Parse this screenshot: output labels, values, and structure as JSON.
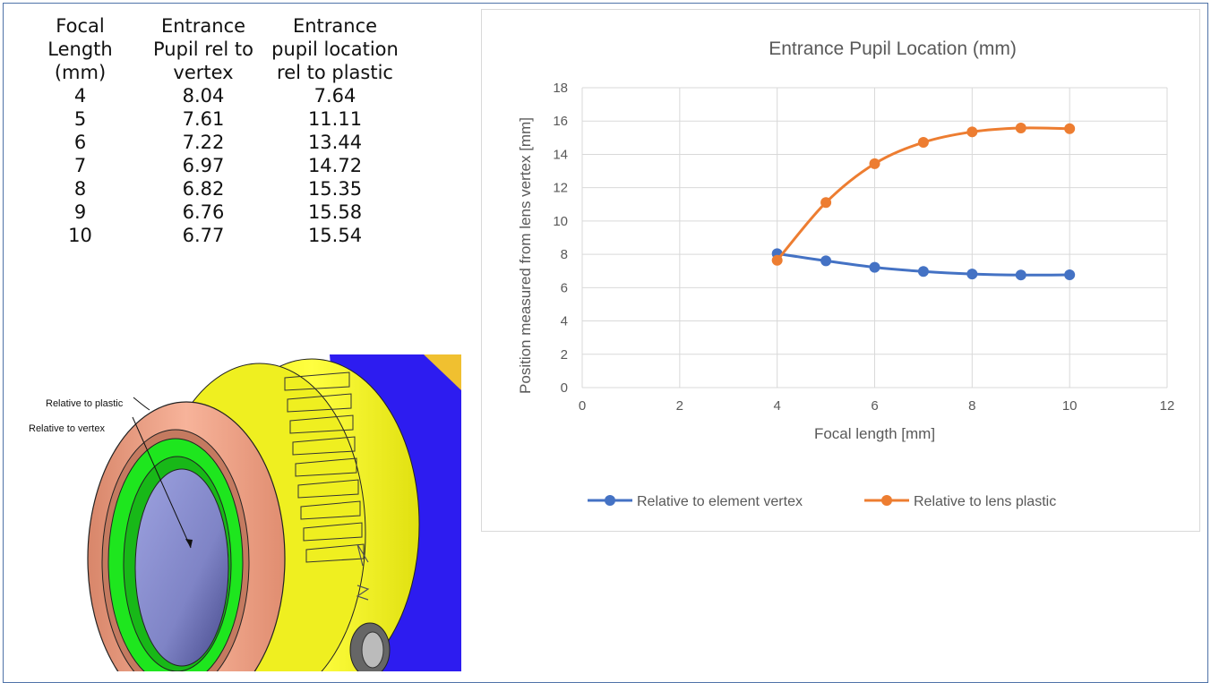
{
  "table": {
    "headers": [
      "Focal\nLength\n(mm)",
      "Entrance\nPupil rel to\nvertex",
      "Entrance\npupil location\nrel to plastic"
    ],
    "rows": [
      [
        "4",
        "8.04",
        "7.64"
      ],
      [
        "5",
        "7.61",
        "11.11"
      ],
      [
        "6",
        "7.22",
        "13.44"
      ],
      [
        "7",
        "6.97",
        "14.72"
      ],
      [
        "8",
        "6.82",
        "15.35"
      ],
      [
        "9",
        "6.76",
        "15.58"
      ],
      [
        "10",
        "6.77",
        "15.54"
      ]
    ]
  },
  "lens_diagram": {
    "label_plastic": "Relative to plastic",
    "label_vertex": "Relative to vertex",
    "colors": {
      "ring": "#f2a486",
      "green": "#1ee61e",
      "glass": "#8a8fd0",
      "body": "#f4f41a",
      "mount": "#2d1cf0"
    }
  },
  "chart_data": {
    "type": "line",
    "title": "Entrance Pupil Location (mm)",
    "xlabel": "Focal length [mm]",
    "ylabel": "Position measured from lens vertex  [mm]",
    "xlim": [
      0,
      12
    ],
    "ylim": [
      0,
      18
    ],
    "xticks": [
      0,
      2,
      4,
      6,
      8,
      10,
      12
    ],
    "yticks": [
      0,
      2,
      4,
      6,
      8,
      10,
      12,
      14,
      16,
      18
    ],
    "grid": true,
    "smooth": true,
    "legend_position": "bottom",
    "x": [
      4,
      5,
      6,
      7,
      8,
      9,
      10
    ],
    "series": [
      {
        "name": "Relative to element vertex",
        "color": "#4472c4",
        "values": [
          8.04,
          7.61,
          7.22,
          6.97,
          6.82,
          6.76,
          6.77
        ]
      },
      {
        "name": "Relative to lens plastic",
        "color": "#ed7d31",
        "values": [
          7.64,
          11.11,
          13.44,
          14.72,
          15.35,
          15.58,
          15.54
        ]
      }
    ]
  }
}
